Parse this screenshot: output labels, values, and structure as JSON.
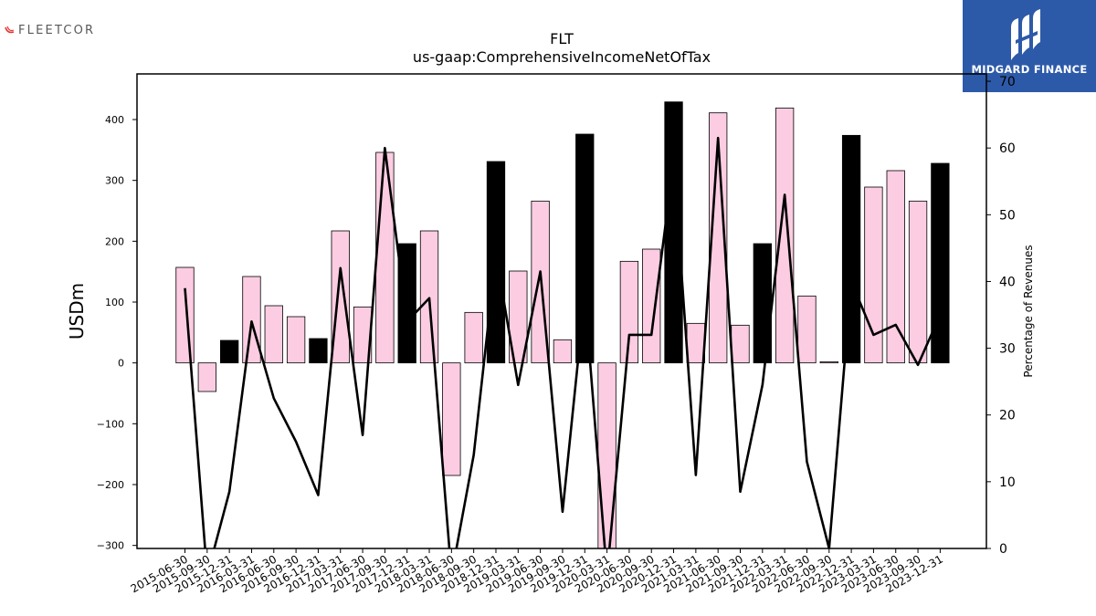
{
  "logos": {
    "left_brand": "FLEETCOR",
    "right_brand": "MIDGARD FINANCE"
  },
  "colors": {
    "bar_positive": "#fccde2",
    "bar_highlight": "#000000",
    "line": "#000000",
    "badge_bg": "#2d5aa8"
  },
  "chart_data": {
    "type": "bar",
    "title": "FLT",
    "subtitle": "us-gaap:ComprehensiveIncomeNetOfTax",
    "ylabel": "USDm",
    "y2label": "Percentage of Revenues",
    "ylim": [
      -305,
      475
    ],
    "y2lim": [
      0,
      71.1
    ],
    "yticks": [
      -300,
      -200,
      -100,
      0,
      100,
      200,
      300,
      400
    ],
    "y2ticks": [
      0,
      10,
      20,
      30,
      40,
      50,
      60,
      70
    ],
    "categories": [
      "2015-06-30",
      "2015-09-30",
      "2015-12-31",
      "2016-03-31",
      "2016-06-30",
      "2016-09-30",
      "2016-12-31",
      "2017-03-31",
      "2017-06-30",
      "2017-09-30",
      "2017-12-31",
      "2018-03-31",
      "2018-06-30",
      "2018-09-30",
      "2018-12-31",
      "2019-03-31",
      "2019-06-30",
      "2019-09-30",
      "2019-12-31",
      "2020-03-31",
      "2020-06-30",
      "2020-09-30",
      "2020-12-31",
      "2021-03-31",
      "2021-06-30",
      "2021-09-30",
      "2021-12-31",
      "2022-03-31",
      "2022-06-30",
      "2022-09-30",
      "2022-12-31",
      "2023-03-31",
      "2023-06-30",
      "2023-09-30",
      "2023-12-31"
    ],
    "series": [
      {
        "type": "bar",
        "values": [
          157,
          -47,
          37,
          142,
          94,
          76,
          40,
          217,
          92,
          346,
          196,
          217,
          -185,
          83,
          331,
          151,
          266,
          38,
          376,
          -310,
          167,
          187,
          429,
          65,
          411,
          62,
          196,
          419,
          110,
          2,
          374,
          289,
          316,
          266,
          328
        ],
        "highlight": [
          false,
          false,
          true,
          false,
          false,
          false,
          true,
          false,
          false,
          false,
          true,
          false,
          false,
          false,
          true,
          false,
          false,
          false,
          true,
          false,
          false,
          false,
          true,
          false,
          false,
          false,
          true,
          false,
          false,
          false,
          true,
          false,
          false,
          false,
          true
        ]
      },
      {
        "type": "line",
        "axis": "right",
        "values": [
          39,
          -4,
          8.5,
          34,
          22.5,
          16,
          8,
          42,
          17,
          60,
          34,
          37.5,
          -4,
          14,
          44,
          24.5,
          41.5,
          5.5,
          38,
          -4,
          32,
          32,
          58,
          11,
          61.5,
          8.5,
          24.5,
          53,
          13,
          0,
          40,
          32,
          33.5,
          27.5,
          35
        ]
      }
    ]
  }
}
